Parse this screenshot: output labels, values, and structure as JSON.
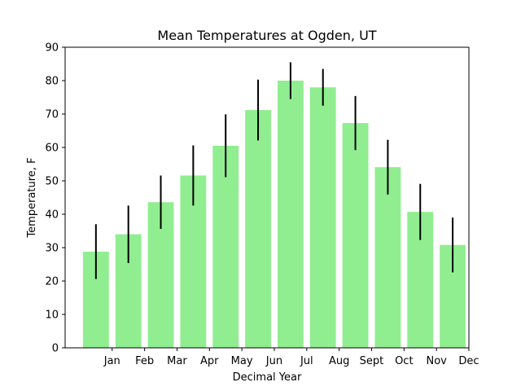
{
  "chart_data": {
    "type": "bar",
    "title": "Mean Temperatures at Ogden, UT",
    "xlabel": "Decimal Year",
    "ylabel": "Temperature, F",
    "categories": [
      "Jan",
      "Feb",
      "Mar",
      "Apr",
      "May",
      "Jun",
      "Jul",
      "Aug",
      "Sept",
      "Oct",
      "Nov",
      "Dec"
    ],
    "values": [
      28.8,
      34.0,
      43.6,
      51.6,
      60.5,
      71.2,
      80.0,
      78.0,
      67.3,
      54.1,
      40.7,
      30.8
    ],
    "errors": [
      8.2,
      8.6,
      8.0,
      9.0,
      9.4,
      9.1,
      5.5,
      5.5,
      8.1,
      8.2,
      8.4,
      8.2
    ],
    "bar_color": "#90ee90",
    "ylim": [
      0,
      90
    ],
    "yticks": [
      0,
      10,
      20,
      30,
      40,
      50,
      60,
      70,
      80,
      90
    ],
    "grid": false
  }
}
